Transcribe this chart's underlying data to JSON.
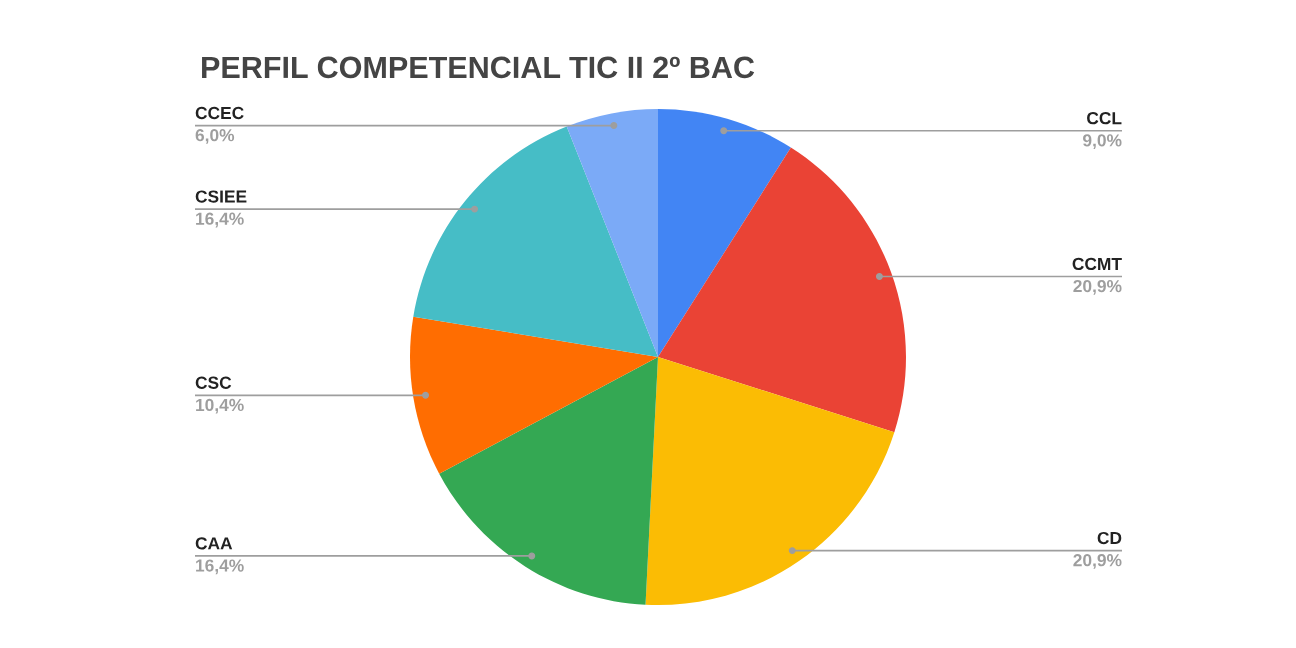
{
  "chart_data": {
    "type": "pie",
    "title": "PERFIL COMPETENCIAL TIC II 2º BAC",
    "categories": [
      "CCL",
      "CCMT",
      "CD",
      "CAA",
      "CSC",
      "CSIEE",
      "CCEC"
    ],
    "values": [
      9.0,
      20.9,
      20.9,
      16.4,
      10.4,
      16.4,
      6.0
    ],
    "value_labels": [
      "9,0%",
      "20,9%",
      "20,9%",
      "16,4%",
      "10,4%",
      "16,4%",
      "6,0%"
    ],
    "colors": [
      "#4285f4",
      "#ea4335",
      "#fbbc04",
      "#34a853",
      "#ff6d01",
      "#46bdc6",
      "#7baaf7"
    ],
    "legend": false
  }
}
